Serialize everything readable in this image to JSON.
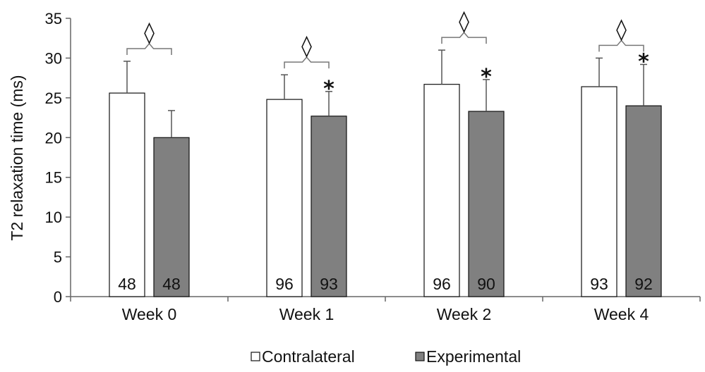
{
  "chart_data": {
    "type": "bar",
    "ylabel": "T2 relaxation time (ms)",
    "ylim": [
      0,
      35
    ],
    "yticks": [
      0,
      5,
      10,
      15,
      20,
      25,
      30,
      35
    ],
    "categories": [
      "Week 0",
      "Week 1",
      "Week 2",
      "Week 4"
    ],
    "series": [
      {
        "name": "Contralateral",
        "color": "#ffffff",
        "values": [
          25.6,
          24.8,
          26.7,
          26.4
        ],
        "error": [
          4.0,
          3.1,
          4.3,
          3.6
        ],
        "n": [
          "48",
          "96",
          "96",
          "93"
        ]
      },
      {
        "name": "Experimental",
        "color": "#808080",
        "values": [
          20.0,
          22.7,
          23.3,
          24.0
        ],
        "error": [
          3.4,
          3.1,
          4.0,
          5.2
        ],
        "n": [
          "48",
          "93",
          "90",
          "92"
        ]
      }
    ],
    "annotations": {
      "diamond_symbol": "◊",
      "star_symbol": "*",
      "diamond_on": [
        true,
        true,
        true,
        true
      ],
      "star_on_experimental": [
        false,
        true,
        true,
        true
      ]
    },
    "legend_placement": "bottom-center",
    "grid": false
  }
}
